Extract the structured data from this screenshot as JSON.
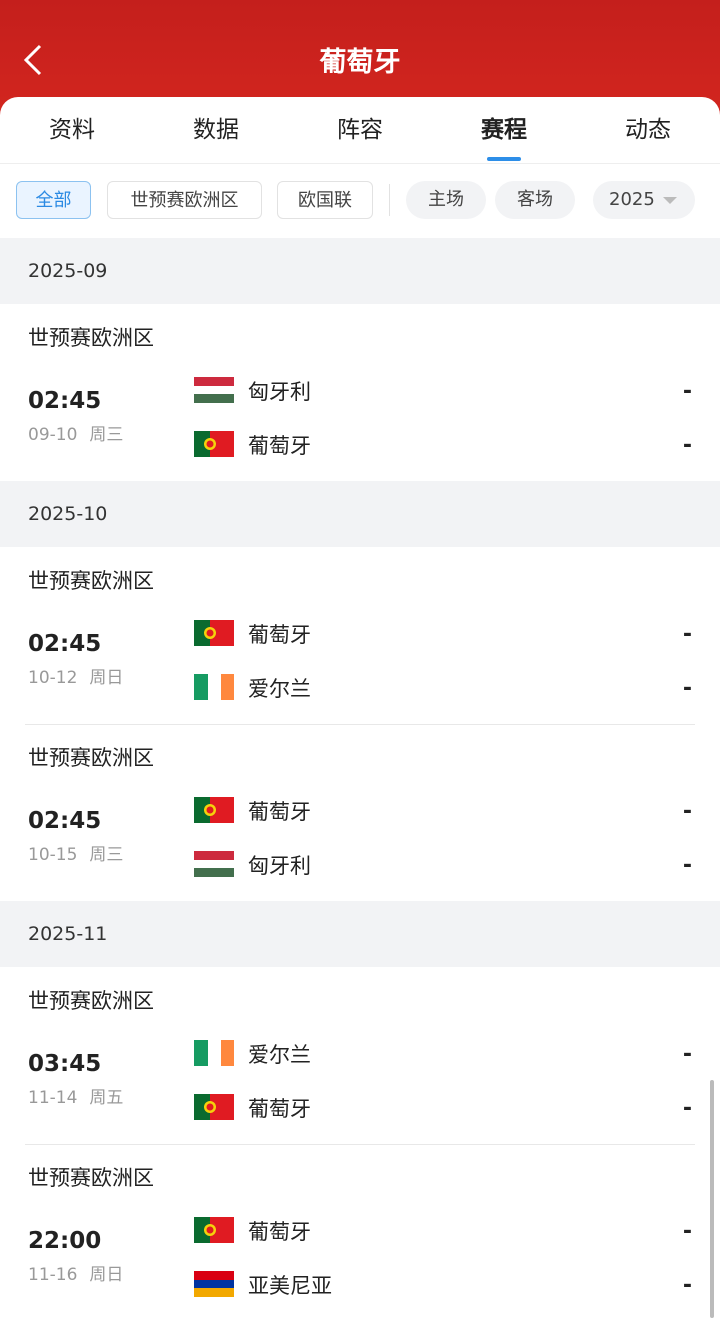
{
  "header": {
    "title": "葡萄牙"
  },
  "tabs": [
    "资料",
    "数据",
    "阵容",
    "赛程",
    "动态"
  ],
  "active_tab": 3,
  "filters": {
    "competitions": [
      "全部",
      "世预赛欧洲区",
      "欧国联"
    ],
    "venues": [
      "主场",
      "客场"
    ],
    "year": "2025"
  },
  "months": [
    {
      "month": "2025-09",
      "matches": [
        {
          "competition": "世预赛欧洲区",
          "time": "02:45",
          "date": "09-10",
          "weekday": "周三",
          "home": "匈牙利",
          "home_score": "-",
          "away": "葡萄牙",
          "away_score": "-"
        }
      ]
    },
    {
      "month": "2025-10",
      "matches": [
        {
          "competition": "世预赛欧洲区",
          "time": "02:45",
          "date": "10-12",
          "weekday": "周日",
          "home": "葡萄牙",
          "home_score": "-",
          "away": "爱尔兰",
          "away_score": "-"
        },
        {
          "competition": "世预赛欧洲区",
          "time": "02:45",
          "date": "10-15",
          "weekday": "周三",
          "home": "葡萄牙",
          "home_score": "-",
          "away": "匈牙利",
          "away_score": "-"
        }
      ]
    },
    {
      "month": "2025-11",
      "matches": [
        {
          "competition": "世预赛欧洲区",
          "time": "03:45",
          "date": "11-14",
          "weekday": "周五",
          "home": "爱尔兰",
          "home_score": "-",
          "away": "葡萄牙",
          "away_score": "-"
        },
        {
          "competition": "世预赛欧洲区",
          "time": "22:00",
          "date": "11-16",
          "weekday": "周日",
          "home": "葡萄牙",
          "home_score": "-",
          "away": "亚美尼亚",
          "away_score": "-"
        }
      ]
    }
  ]
}
